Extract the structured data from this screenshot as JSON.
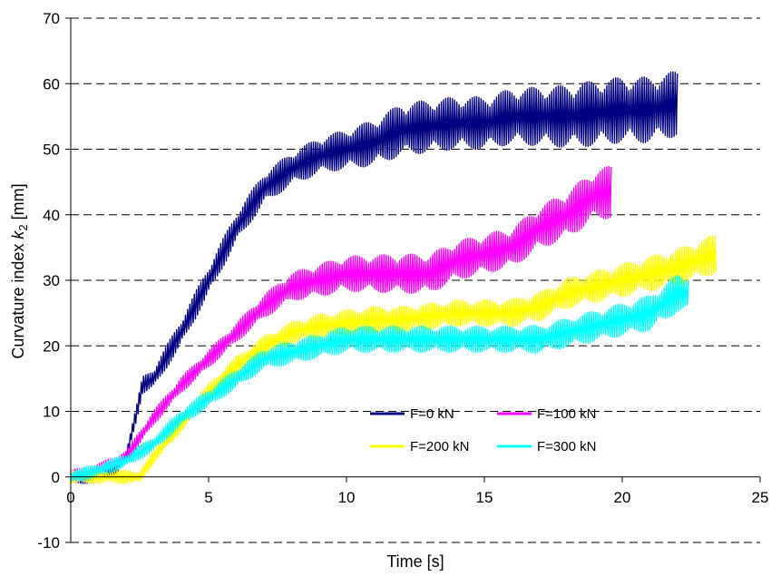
{
  "chart_data": {
    "type": "line",
    "xlabel": "Time [s]",
    "ylabel_prefix": "Curvature index ",
    "ylabel_symbol": "k",
    "ylabel_subscript": "2",
    "ylabel_suffix": " [mm]",
    "xlim": [
      0,
      25
    ],
    "ylim": [
      -10,
      70
    ],
    "x_ticks": [
      "0",
      "5",
      "10",
      "15",
      "20",
      "25"
    ],
    "y_ticks": [
      "-10",
      "0",
      "10",
      "20",
      "30",
      "40",
      "50",
      "60",
      "70"
    ],
    "grid": "horizontal dashed",
    "legend_position": "bottom-right",
    "series": [
      {
        "name": "F=0 kN",
        "color": "#000080",
        "points": [
          [
            0,
            0
          ],
          [
            0.8,
            0
          ],
          [
            1.5,
            1
          ],
          [
            2.0,
            3
          ],
          [
            2.4,
            10
          ],
          [
            2.6,
            14
          ],
          [
            3,
            15
          ],
          [
            4,
            22
          ],
          [
            5,
            30
          ],
          [
            6,
            38
          ],
          [
            7,
            44
          ],
          [
            8,
            47
          ],
          [
            9,
            49
          ],
          [
            10,
            50
          ],
          [
            11,
            51
          ],
          [
            12,
            53
          ],
          [
            13,
            53.5
          ],
          [
            14,
            54
          ],
          [
            15,
            54
          ],
          [
            16,
            55
          ],
          [
            17,
            55
          ],
          [
            18,
            55
          ],
          [
            19,
            55.5
          ],
          [
            20,
            56
          ],
          [
            21,
            56
          ],
          [
            22,
            57
          ]
        ],
        "amplitude": [
          [
            2,
            1
          ],
          [
            4,
            2
          ],
          [
            8,
            2.5
          ],
          [
            10,
            3
          ],
          [
            12,
            4
          ],
          [
            15,
            4
          ],
          [
            19,
            5
          ],
          [
            22,
            5
          ]
        ]
      },
      {
        "name": "F=100 kN",
        "color": "#FF00FF",
        "points": [
          [
            0,
            0
          ],
          [
            1,
            1
          ],
          [
            2,
            3
          ],
          [
            3,
            9
          ],
          [
            4,
            14
          ],
          [
            5,
            18
          ],
          [
            6,
            22
          ],
          [
            7,
            26
          ],
          [
            8,
            29
          ],
          [
            9,
            30
          ],
          [
            10,
            31
          ],
          [
            11,
            31
          ],
          [
            12,
            31
          ],
          [
            13,
            31
          ],
          [
            14,
            33
          ],
          [
            15,
            34
          ],
          [
            16,
            35
          ],
          [
            17,
            38
          ],
          [
            18,
            40
          ],
          [
            19,
            43
          ],
          [
            19.6,
            43.5
          ]
        ],
        "amplitude": [
          [
            2,
            1
          ],
          [
            6,
            1.5
          ],
          [
            9,
            2.5
          ],
          [
            12,
            3
          ],
          [
            16,
            3
          ],
          [
            19.6,
            4
          ]
        ]
      },
      {
        "name": "F=200 kN",
        "color": "#FFFF00",
        "points": [
          [
            0,
            0
          ],
          [
            2.5,
            0
          ],
          [
            3,
            3
          ],
          [
            4,
            8
          ],
          [
            5,
            13
          ],
          [
            6,
            17
          ],
          [
            7,
            20
          ],
          [
            8,
            22
          ],
          [
            9,
            23
          ],
          [
            10,
            23.5
          ],
          [
            11,
            24
          ],
          [
            12,
            24
          ],
          [
            13,
            24.5
          ],
          [
            14,
            25
          ],
          [
            15,
            25
          ],
          [
            16,
            25
          ],
          [
            17,
            26
          ],
          [
            18,
            28
          ],
          [
            19,
            29
          ],
          [
            20,
            30
          ],
          [
            21,
            31
          ],
          [
            22,
            32
          ],
          [
            23,
            33.5
          ],
          [
            23.4,
            34
          ]
        ],
        "amplitude": [
          [
            3,
            1
          ],
          [
            7,
            1.5
          ],
          [
            10,
            2
          ],
          [
            15,
            2
          ],
          [
            20,
            2.5
          ],
          [
            23.4,
            3
          ]
        ]
      },
      {
        "name": "F=300 kN",
        "color": "#00FFFF",
        "points": [
          [
            0,
            0
          ],
          [
            1,
            1
          ],
          [
            2,
            2.5
          ],
          [
            3,
            5
          ],
          [
            4,
            9
          ],
          [
            5,
            12
          ],
          [
            6,
            15
          ],
          [
            7,
            18
          ],
          [
            8,
            19
          ],
          [
            9,
            20
          ],
          [
            10,
            21
          ],
          [
            11,
            21
          ],
          [
            12,
            21
          ],
          [
            13,
            21
          ],
          [
            14,
            21
          ],
          [
            15,
            21
          ],
          [
            16,
            21
          ],
          [
            17,
            21
          ],
          [
            18,
            22
          ],
          [
            19,
            23
          ],
          [
            20,
            24
          ],
          [
            21,
            25
          ],
          [
            22,
            28
          ],
          [
            22.4,
            28
          ]
        ],
        "amplitude": [
          [
            2,
            1
          ],
          [
            6,
            1.5
          ],
          [
            10,
            2
          ],
          [
            16,
            2
          ],
          [
            20,
            2.5
          ],
          [
            22.4,
            3
          ]
        ]
      }
    ]
  }
}
